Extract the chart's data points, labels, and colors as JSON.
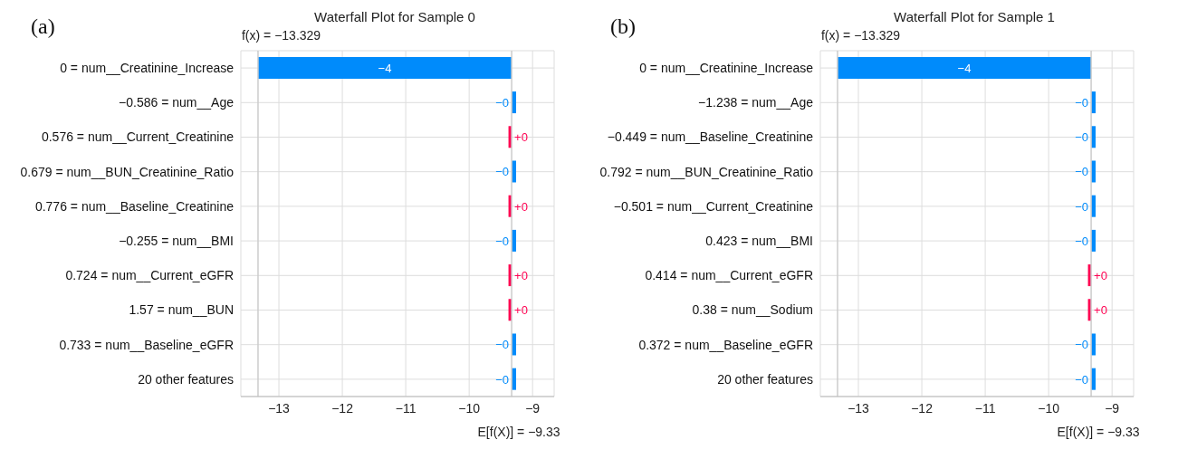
{
  "chart_data": [
    {
      "type": "bar",
      "orientation": "horizontal",
      "title": "Waterfall Plot for Sample 0",
      "annotations": [
        "(a)"
      ],
      "categories": [
        "0 = num__Creatinine_Increase",
        "−0.586 = num__Age",
        "0.576 = num__Current_Creatinine",
        "0.679 = num__BUN_Creatinine_Ratio",
        "0.776 = num__Baseline_Creatinine",
        "−0.255 = num__BMI",
        "0.724 = num__Current_eGFR",
        "1.57 = num__BUN",
        "0.733 = num__Baseline_eGFR",
        "20 other features"
      ],
      "values": [
        -4,
        -0.07,
        0.05,
        -0.07,
        0.05,
        -0.07,
        0.05,
        0.05,
        -0.07,
        -0.07
      ],
      "base": [
        -9.33,
        -9.26,
        -9.38,
        -9.26,
        -9.38,
        -9.26,
        -9.38,
        -9.38,
        -9.26,
        -9.26
      ],
      "colors": [
        "#008bfb",
        "#008bfb",
        "#ff0051",
        "#008bfb",
        "#ff0051",
        "#008bfb",
        "#ff0051",
        "#ff0051",
        "#008bfb",
        "#008bfb"
      ],
      "value_labels": [
        "−4",
        "−0",
        "+0",
        "−0",
        "+0",
        "−0",
        "+0",
        "+0",
        "−0",
        "−0"
      ],
      "xlim": [
        -13.6,
        -8.66
      ],
      "xticks": [
        {
          "value": -13,
          "label": "−13"
        },
        {
          "value": -12,
          "label": "−12"
        },
        {
          "value": -11,
          "label": "−11"
        },
        {
          "value": -10,
          "label": "−10"
        },
        {
          "value": -9,
          "label": "−9"
        }
      ],
      "ref_lines": [
        {
          "axis": "x",
          "value": -13.329,
          "label": "f(x) = −13.329",
          "color": "#cccccc"
        },
        {
          "axis": "x",
          "value": -9.33,
          "label": "E[f(X)] = −9.33",
          "color": "#cccccc"
        }
      ],
      "grid": true
    },
    {
      "type": "bar",
      "orientation": "horizontal",
      "title": "Waterfall Plot for Sample 1",
      "annotations": [
        "(b)"
      ],
      "categories": [
        "0 = num__Creatinine_Increase",
        "−1.238 = num__Age",
        "−0.449 = num__Baseline_Creatinine",
        "0.792 = num__BUN_Creatinine_Ratio",
        "−0.501 = num__Current_Creatinine",
        "0.423 = num__BMI",
        "0.414 = num__Current_eGFR",
        "0.38 = num__Sodium",
        "0.372 = num__Baseline_eGFR",
        "20 other features"
      ],
      "values": [
        -4,
        -0.07,
        -0.07,
        -0.07,
        -0.07,
        -0.07,
        0.05,
        0.05,
        -0.07,
        -0.07
      ],
      "base": [
        -9.33,
        -9.26,
        -9.26,
        -9.26,
        -9.26,
        -9.26,
        -9.38,
        -9.38,
        -9.26,
        -9.26
      ],
      "colors": [
        "#008bfb",
        "#008bfb",
        "#008bfb",
        "#008bfb",
        "#008bfb",
        "#008bfb",
        "#ff0051",
        "#ff0051",
        "#008bfb",
        "#008bfb"
      ],
      "value_labels": [
        "−4",
        "−0",
        "−0",
        "−0",
        "−0",
        "−0",
        "+0",
        "+0",
        "−0",
        "−0"
      ],
      "xlim": [
        -13.6,
        -8.66
      ],
      "xticks": [
        {
          "value": -13,
          "label": "−13"
        },
        {
          "value": -12,
          "label": "−12"
        },
        {
          "value": -11,
          "label": "−11"
        },
        {
          "value": -10,
          "label": "−10"
        },
        {
          "value": -9,
          "label": "−9"
        }
      ],
      "ref_lines": [
        {
          "axis": "x",
          "value": -13.329,
          "label": "f(x) = −13.329",
          "color": "#cccccc"
        },
        {
          "axis": "x",
          "value": -9.33,
          "label": "E[f(X)] = −9.33",
          "color": "#cccccc"
        }
      ],
      "grid": true
    }
  ]
}
